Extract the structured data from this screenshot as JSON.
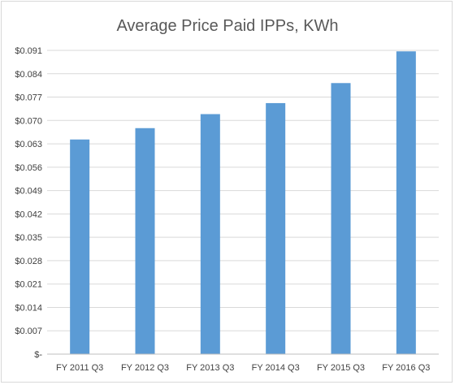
{
  "chart_data": {
    "type": "bar",
    "title": "Average Price Paid IPPs, KWh",
    "xlabel": "",
    "ylabel": "",
    "categories": [
      "FY 2011 Q3",
      "FY 2012 Q3",
      "FY 2013 Q3",
      "FY 2014 Q3",
      "FY 2015 Q3",
      "FY 2016 Q3"
    ],
    "values": [
      0.0643,
      0.0677,
      0.0719,
      0.0752,
      0.0812,
      0.0907
    ],
    "ylim": [
      0,
      0.091
    ],
    "yticks": [
      0,
      0.007,
      0.014,
      0.021,
      0.028,
      0.035,
      0.042,
      0.049,
      0.056,
      0.063,
      0.07,
      0.077,
      0.084,
      0.091
    ],
    "ytick_labels": [
      "$-",
      "$0.007",
      "$0.014",
      "$0.021",
      "$0.028",
      "$0.035",
      "$0.042",
      "$0.049",
      "$0.056",
      "$0.063",
      "$0.070",
      "$0.077",
      "$0.084",
      "$0.091"
    ],
    "grid": true,
    "legend": "none",
    "bar_color": "#5b9bd5"
  }
}
